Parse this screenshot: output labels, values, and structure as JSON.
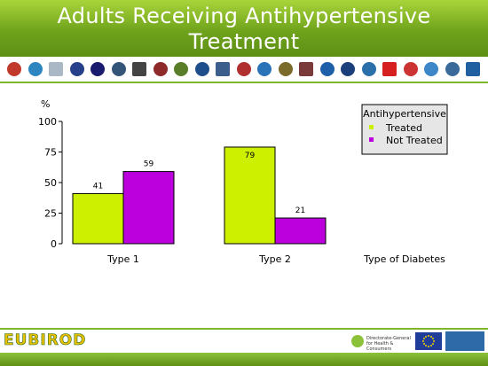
{
  "header": {
    "title": "Adults Receiving Antihypertensive Treatment"
  },
  "logos": [
    {
      "icon": "round-seal-logo",
      "color": "#c0392b"
    },
    {
      "icon": "network-dots-logo",
      "color": "#2e86c1"
    },
    {
      "icon": "j-shape-logo",
      "color": "#aab7c4"
    },
    {
      "icon": "crest-logo",
      "color": "#27408b"
    },
    {
      "icon": "institute-logo",
      "color": "#1a1a6e"
    },
    {
      "icon": "text-logo",
      "color": "#335577"
    },
    {
      "icon": "university-seal-logo",
      "color": "#444444"
    },
    {
      "icon": "shield-logo",
      "color": "#8e2a2a"
    },
    {
      "icon": "emblem-logo",
      "color": "#5a7d2a"
    },
    {
      "icon": "blue-seal-logo",
      "color": "#1f4e8c"
    },
    {
      "icon": "ring-seal-logo",
      "color": "#3b5f8a"
    },
    {
      "icon": "isp-logo",
      "color": "#b03030"
    },
    {
      "icon": "wing-logo",
      "color": "#2a73b8"
    },
    {
      "icon": "ribbon-logo",
      "color": "#7a6b2a"
    },
    {
      "icon": "building-logo",
      "color": "#7a3a3a"
    },
    {
      "icon": "cross-logo",
      "color": "#1d5fa8"
    },
    {
      "icon": "globe-logo",
      "color": "#1b3f7a"
    },
    {
      "icon": "laurel-logo",
      "color": "#2a6faa"
    },
    {
      "icon": "heart-text-logo",
      "color": "#d62020"
    },
    {
      "icon": "figure-logo",
      "color": "#cc3333"
    },
    {
      "icon": "h-logo",
      "color": "#3d87c8"
    },
    {
      "icon": "arrow-logo",
      "color": "#3a6a9a"
    },
    {
      "icon": "swoosh-logo",
      "color": "#2060a0"
    }
  ],
  "chart_data": {
    "type": "bar",
    "title": "",
    "ylabel": "%",
    "xlabel": "Type of Diabetes",
    "categories": [
      "Type 1",
      "Type 2"
    ],
    "ylim": [
      0,
      100
    ],
    "yticks": [
      0,
      25,
      50,
      75,
      100
    ],
    "series": [
      {
        "name": "Treated",
        "values": [
          41,
          79
        ],
        "color": "#ccf000"
      },
      {
        "name": "Not Treated",
        "values": [
          59,
          21
        ],
        "color": "#bb00dd"
      }
    ],
    "legend": {
      "title": "Antihypertensive",
      "placement": "top-right"
    },
    "grid": false
  },
  "footer": {
    "brand": "EUBIROD",
    "dg_text": "Directorate-General for Health & Consumers",
    "colors": {
      "green": "#7fb62a",
      "eu_blue": "#1f3d99",
      "eu_star": "#f4d000"
    }
  }
}
